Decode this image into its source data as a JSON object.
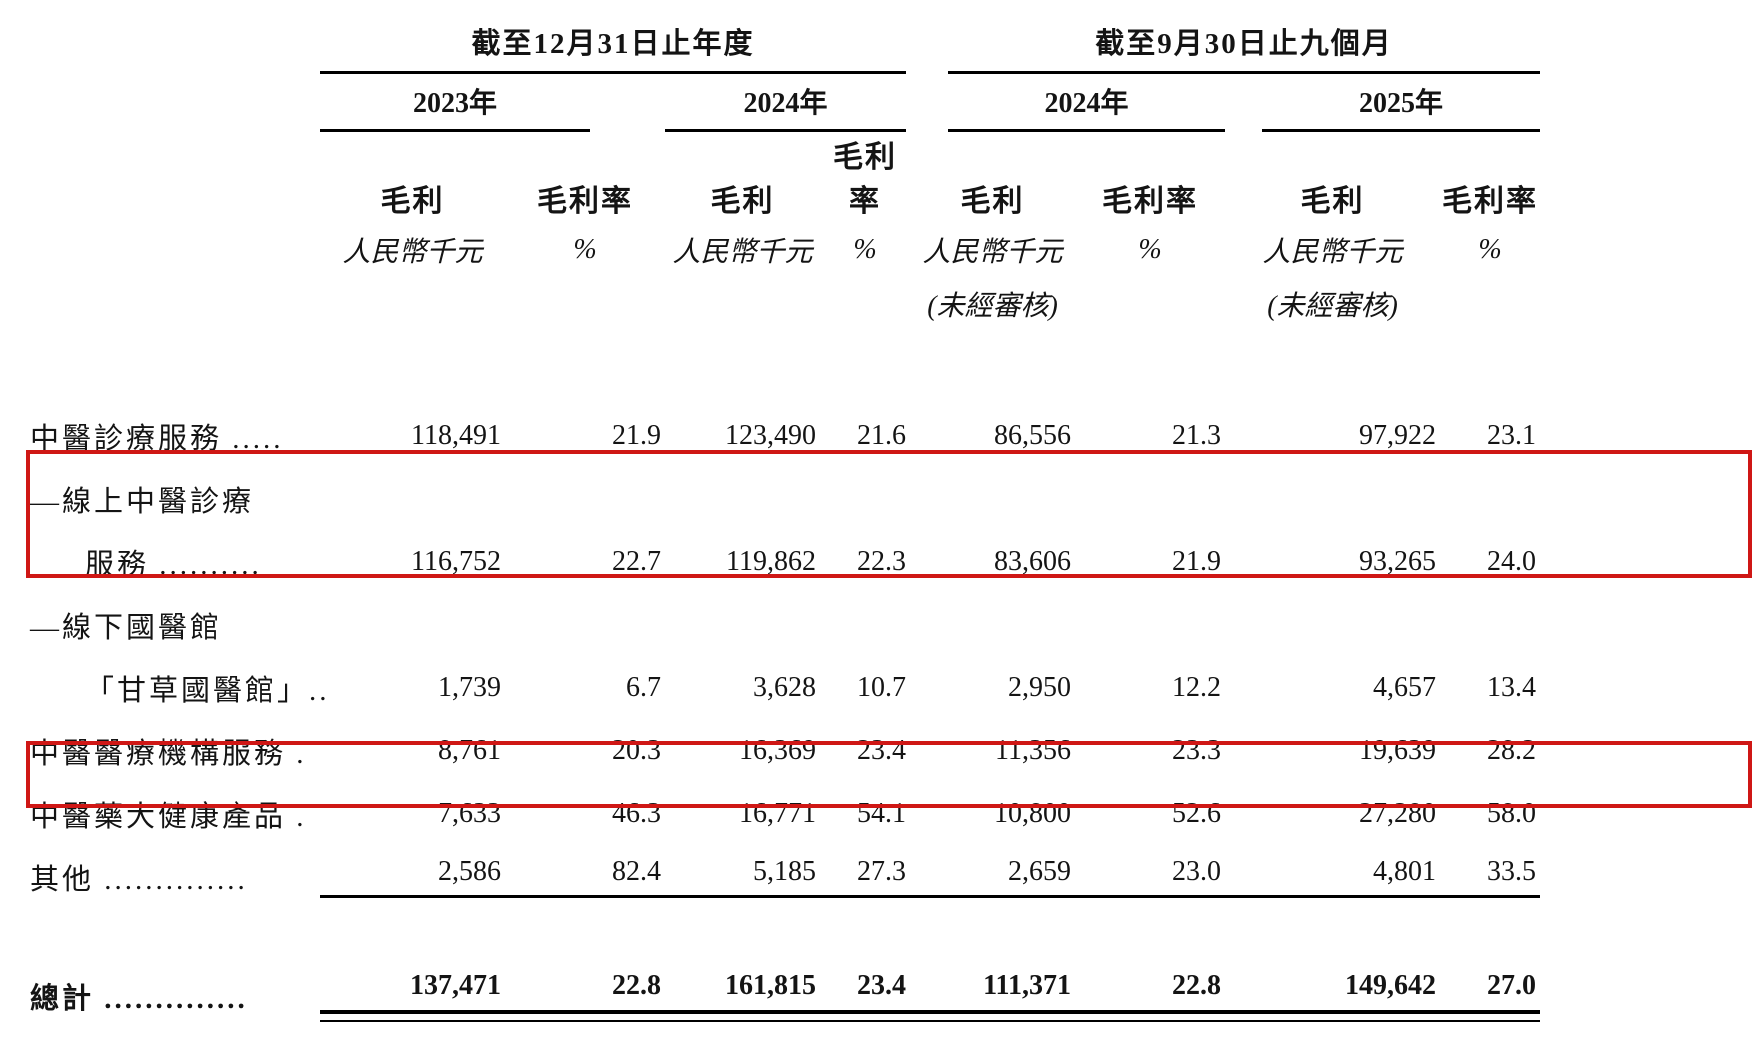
{
  "page": {
    "background": "#ffffff",
    "highlight_color": "#cf1715"
  },
  "table": {
    "groups": [
      {
        "title": "截至12月31日止年度",
        "years": [
          {
            "label": "2023年"
          },
          {
            "label": "2024年"
          }
        ]
      },
      {
        "title": "截至9月30日止九個月",
        "years": [
          {
            "label": "2024年"
          },
          {
            "label": "2025年"
          }
        ]
      }
    ],
    "col_headers": {
      "gross_profit": "毛利",
      "gross_margin": "毛利率",
      "unit_rmb": "人民幣千元",
      "unit_pct": "%",
      "unaudited": "(未經審核)"
    },
    "rows": [
      {
        "label": "中醫診療服務 .....",
        "indent": false,
        "highlighted": false,
        "values": [
          "118,491",
          "21.9",
          "123,490",
          "21.6",
          "86,556",
          "21.3",
          "97,922",
          "23.1"
        ]
      },
      {
        "label": "—線上中醫診療",
        "indent": false,
        "highlighted": true,
        "values": null
      },
      {
        "label": "服務 ..........",
        "indent": true,
        "highlighted": true,
        "values": [
          "116,752",
          "22.7",
          "119,862",
          "22.3",
          "83,606",
          "21.9",
          "93,265",
          "24.0"
        ]
      },
      {
        "label": "—線下國醫館",
        "indent": false,
        "highlighted": false,
        "values": null
      },
      {
        "label": "「甘草國醫館」..",
        "indent": true,
        "highlighted": false,
        "values": [
          "1,739",
          "6.7",
          "3,628",
          "10.7",
          "2,950",
          "12.2",
          "4,657",
          "13.4"
        ]
      },
      {
        "label": "中醫醫療機構服務 .",
        "indent": false,
        "highlighted": false,
        "values": [
          "8,761",
          "20.3",
          "16,369",
          "23.4",
          "11,356",
          "23.3",
          "19,639",
          "28.2"
        ]
      },
      {
        "label": "中醫藥大健康產品 .",
        "indent": false,
        "highlighted": true,
        "values": [
          "7,633",
          "46.3",
          "16,771",
          "54.1",
          "10,800",
          "52.6",
          "27,280",
          "58.0"
        ]
      },
      {
        "label": "其他 ..............",
        "indent": false,
        "highlighted": false,
        "underlined": true,
        "values": [
          "2,586",
          "82.4",
          "5,185",
          "27.3",
          "2,659",
          "23.0",
          "4,801",
          "33.5"
        ]
      },
      {
        "label": "總計 ..............",
        "indent": false,
        "highlighted": false,
        "is_total": true,
        "values": [
          "137,471",
          "22.8",
          "161,815",
          "23.4",
          "111,371",
          "22.8",
          "149,642",
          "27.0"
        ]
      }
    ]
  }
}
